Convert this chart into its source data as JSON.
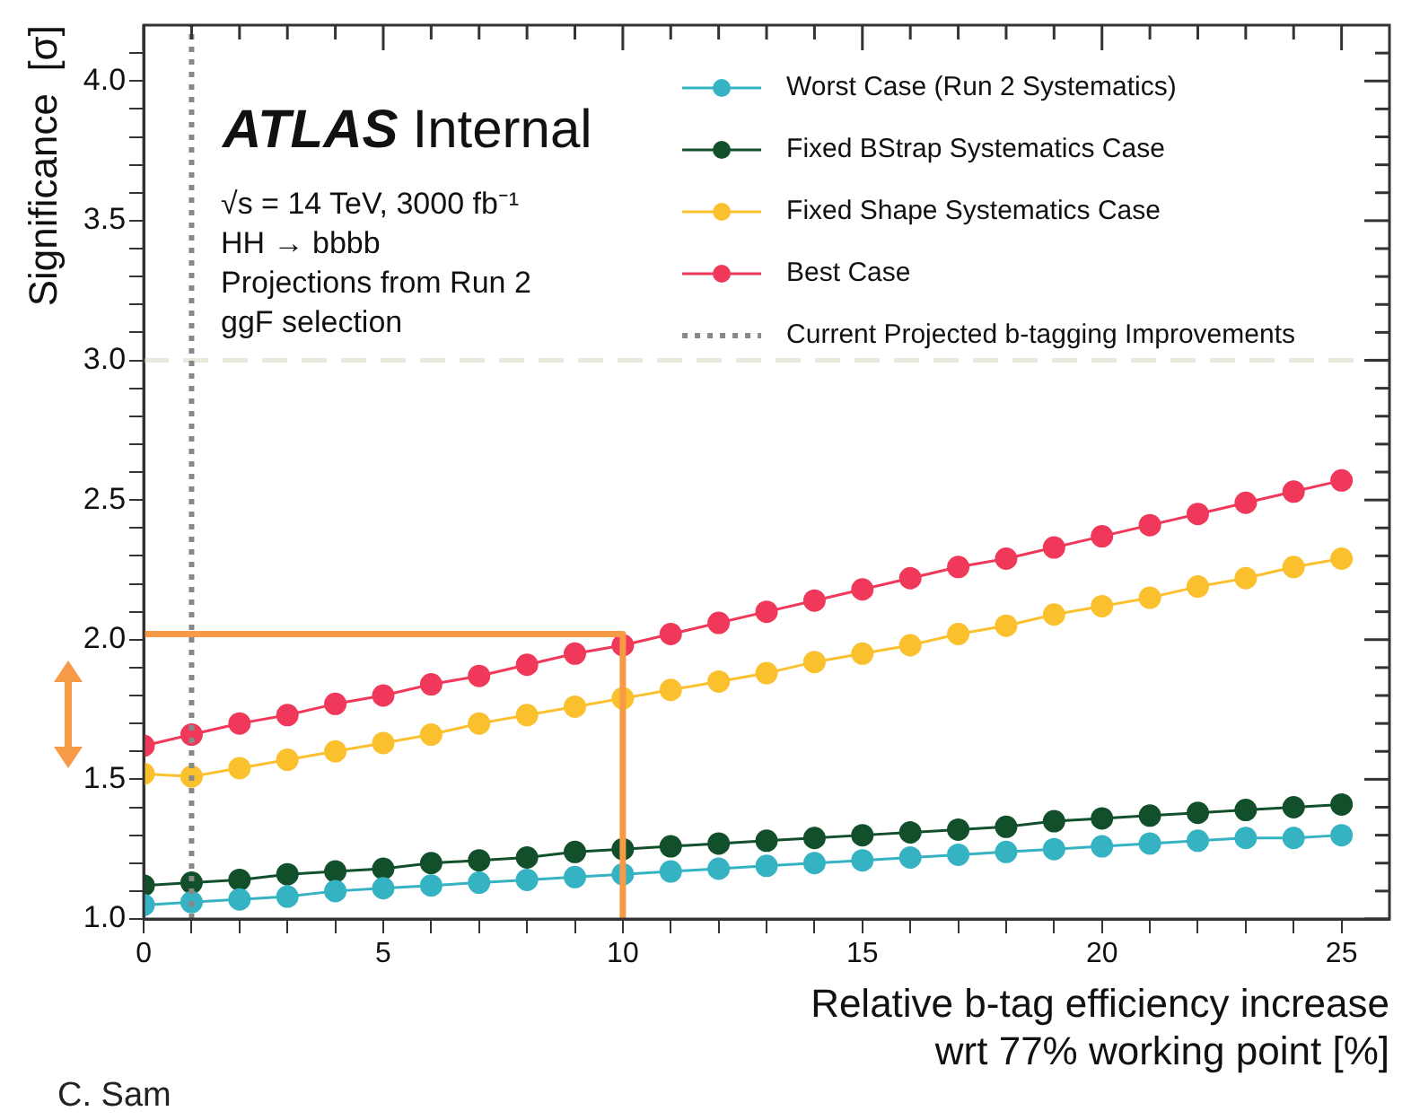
{
  "chart_data": {
    "type": "line",
    "title": "ATLAS Internal",
    "xlabel": "Relative b-tag efficiency increase\nwrt 77% working point [%]",
    "ylabel": "Significance  [σ]",
    "annotations": [
      "√s = 14 TeV, 3000 fb⁻¹",
      "HH → bbbb",
      "Projections from Run 2",
      "ggF selection",
      "C. Sam"
    ],
    "x": [
      0,
      1,
      2,
      3,
      4,
      5,
      6,
      7,
      8,
      9,
      10,
      11,
      12,
      13,
      14,
      15,
      16,
      17,
      18,
      19,
      20,
      21,
      22,
      23,
      24,
      25
    ],
    "series": [
      {
        "name": "Worst Case (Run 2 Systematics)",
        "color": "#35b3c3",
        "values": [
          1.05,
          1.06,
          1.07,
          1.08,
          1.1,
          1.11,
          1.12,
          1.13,
          1.14,
          1.15,
          1.16,
          1.17,
          1.18,
          1.19,
          1.2,
          1.21,
          1.22,
          1.23,
          1.24,
          1.25,
          1.26,
          1.27,
          1.28,
          1.29,
          1.29,
          1.3
        ]
      },
      {
        "name": "Fixed BStrap Systematics Case",
        "color": "#11502a",
        "values": [
          1.12,
          1.13,
          1.14,
          1.16,
          1.17,
          1.18,
          1.2,
          1.21,
          1.22,
          1.24,
          1.25,
          1.26,
          1.27,
          1.28,
          1.29,
          1.3,
          1.31,
          1.32,
          1.33,
          1.35,
          1.36,
          1.37,
          1.38,
          1.39,
          1.4,
          1.41
        ]
      },
      {
        "name": "Fixed Shape Systematics Case",
        "color": "#fbc02d",
        "values": [
          1.52,
          1.51,
          1.54,
          1.57,
          1.6,
          1.63,
          1.66,
          1.7,
          1.73,
          1.76,
          1.79,
          1.82,
          1.85,
          1.88,
          1.92,
          1.95,
          1.98,
          2.02,
          2.05,
          2.09,
          2.12,
          2.15,
          2.19,
          2.22,
          2.26,
          2.29
        ]
      },
      {
        "name": "Best Case",
        "color": "#f0395a",
        "values": [
          1.62,
          1.66,
          1.7,
          1.73,
          1.77,
          1.8,
          1.84,
          1.87,
          1.91,
          1.95,
          1.98,
          2.02,
          2.06,
          2.1,
          2.14,
          2.18,
          2.22,
          2.26,
          2.29,
          2.33,
          2.37,
          2.41,
          2.45,
          2.49,
          2.53,
          2.57
        ]
      },
      {
        "name": "Current Projected b-tagging Improvements",
        "color": "#888888",
        "x": [
          1,
          1
        ],
        "values": [
          1.0,
          4.2
        ],
        "marker": "none",
        "line_style": "dotted"
      },
      {
        "color": "#f79a45",
        "x": [
          0,
          10,
          10
        ],
        "values": [
          2.02,
          2.02,
          1.0
        ],
        "marker": "none"
      }
    ],
    "ref_lines": [
      {
        "axis": "y",
        "value": 3,
        "color": "#e6ecdc",
        "line_style": "dashed"
      }
    ],
    "xlim": [
      0,
      26
    ],
    "ylim": [
      1.0,
      4.2
    ],
    "xticks": [
      0,
      {
        "value": 1,
        "label": null
      },
      {
        "value": 2,
        "label": null
      },
      {
        "value": 3,
        "label": null
      },
      {
        "value": 4,
        "label": null
      },
      5,
      {
        "value": 6,
        "label": null
      },
      {
        "value": 7,
        "label": null
      },
      {
        "value": 8,
        "label": null
      },
      {
        "value": 9,
        "label": null
      },
      10,
      {
        "value": 11,
        "label": null
      },
      {
        "value": 12,
        "label": null
      },
      {
        "value": 13,
        "label": null
      },
      {
        "value": 14,
        "label": null
      },
      15,
      {
        "value": 16,
        "label": null
      },
      {
        "value": 17,
        "label": null
      },
      {
        "value": 18,
        "label": null
      },
      {
        "value": 19,
        "label": null
      },
      20,
      {
        "value": 21,
        "label": null
      },
      {
        "value": 22,
        "label": null
      },
      {
        "value": 23,
        "label": null
      },
      {
        "value": 24,
        "label": null
      },
      25
    ],
    "yticks": [
      {
        "value": 1.0,
        "label": "1.0"
      },
      {
        "value": 1.1,
        "label": null
      },
      {
        "value": 1.2,
        "label": null
      },
      {
        "value": 1.3,
        "label": null
      },
      {
        "value": 1.4,
        "label": null
      },
      {
        "value": 1.5,
        "label": "1.5"
      },
      {
        "value": 1.6,
        "label": null
      },
      {
        "value": 1.7,
        "label": null
      },
      {
        "value": 1.8,
        "label": null
      },
      {
        "value": 1.9,
        "label": null
      },
      {
        "value": 2.0,
        "label": "2.0"
      },
      {
        "value": 2.1,
        "label": null
      },
      {
        "value": 2.2,
        "label": null
      },
      {
        "value": 2.3,
        "label": null
      },
      {
        "value": 2.4,
        "label": null
      },
      {
        "value": 2.5,
        "label": "2.5"
      },
      {
        "value": 2.6,
        "label": null
      },
      {
        "value": 2.7,
        "label": null
      },
      {
        "value": 2.8,
        "label": null
      },
      {
        "value": 2.9,
        "label": null
      },
      {
        "value": 3.0,
        "label": "3.0"
      },
      {
        "value": 3.1,
        "label": null
      },
      {
        "value": 3.2,
        "label": null
      },
      {
        "value": 3.3,
        "label": null
      },
      {
        "value": 3.4,
        "label": null
      },
      {
        "value": 3.5,
        "label": "3.5"
      },
      {
        "value": 3.6,
        "label": null
      },
      {
        "value": 3.7,
        "label": null
      },
      {
        "value": 3.8,
        "label": null
      },
      {
        "value": 3.9,
        "label": null
      },
      {
        "value": 4.0,
        "label": "4.0"
      },
      {
        "value": 4.1,
        "label": null
      }
    ],
    "grid": false,
    "legend": "top right",
    "marker": "circle",
    "line_style": "solid"
  }
}
